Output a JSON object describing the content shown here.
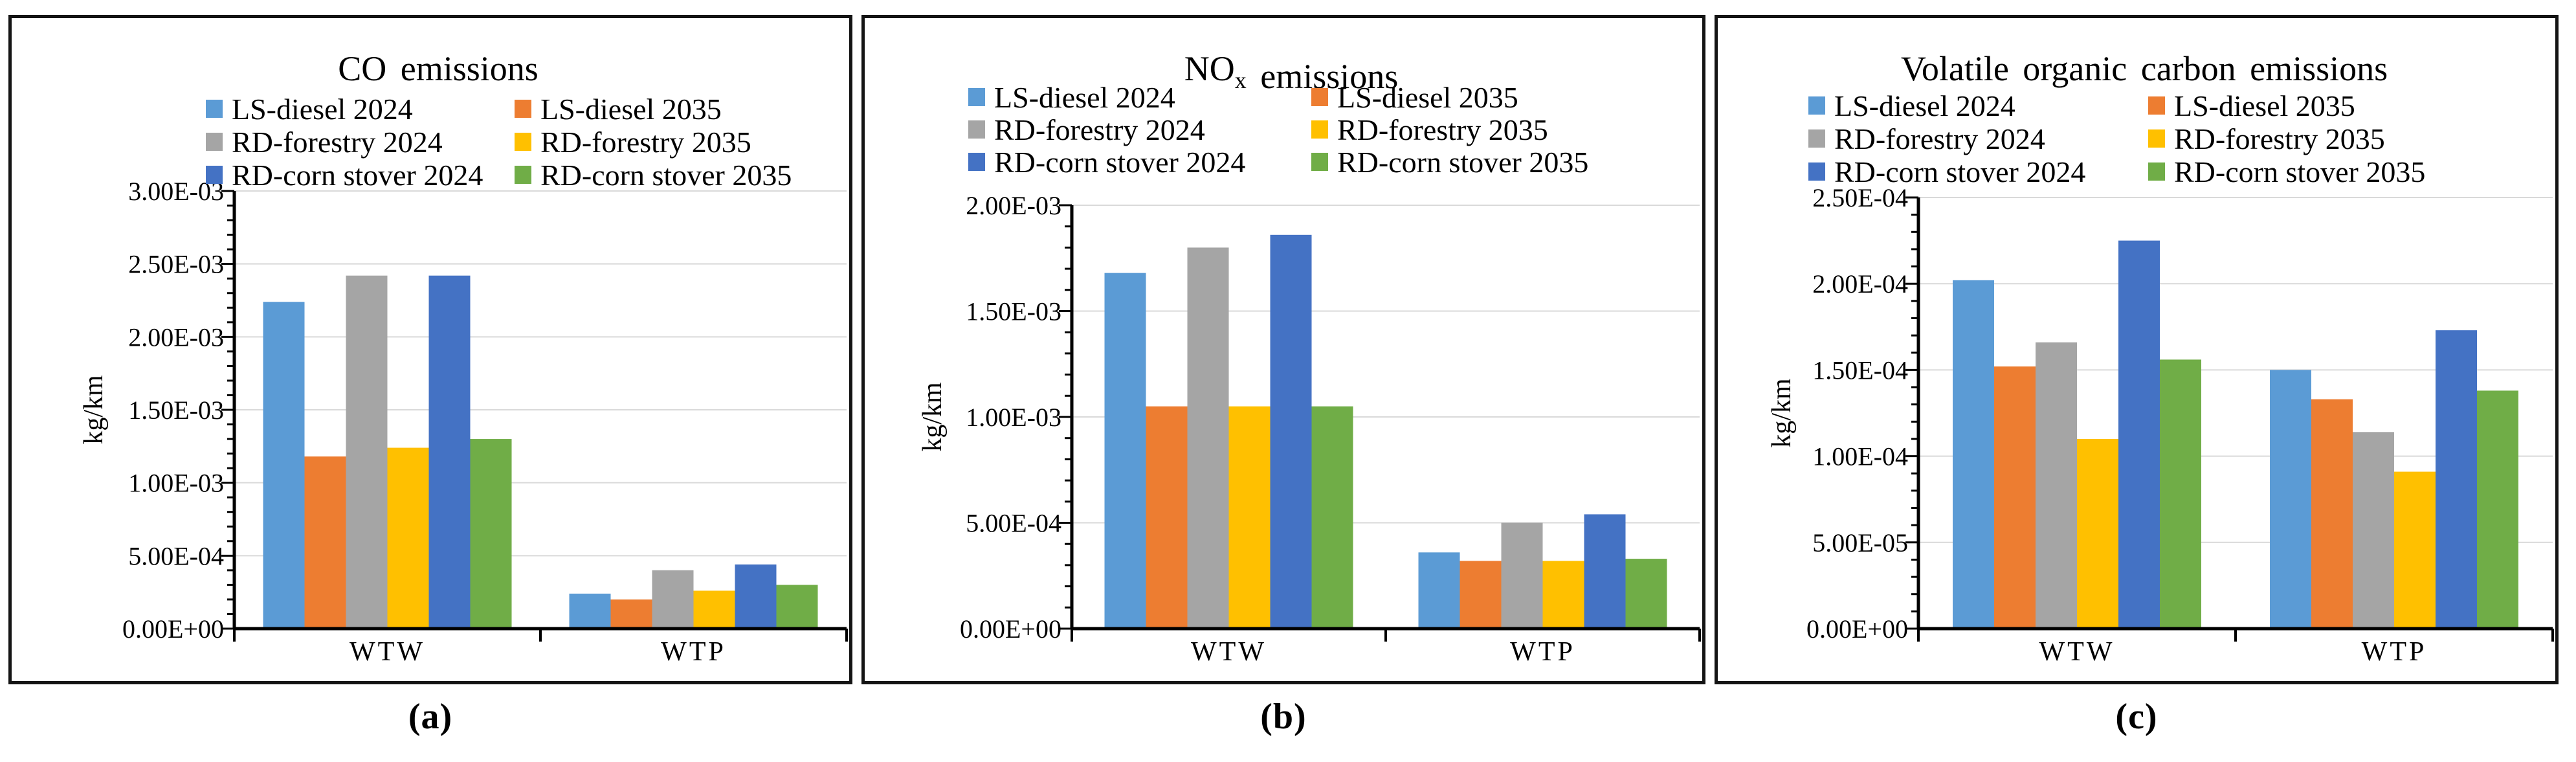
{
  "figure": {
    "captions": [
      "(a)",
      "(b)",
      "(c)"
    ],
    "unit_label": "kg/km",
    "categories": [
      "WTW",
      "WTP"
    ],
    "palette": {
      "ls_diesel_2024": "#5B9BD5",
      "ls_diesel_2035": "#ED7D31",
      "rd_forestry_2024": "#A5A5A5",
      "rd_forestry_2035": "#FFC000",
      "rd_corn_stover_2024": "#4472C4",
      "rd_corn_stover_2035": "#70AD47",
      "gridline": "#D9D9D9",
      "axis": "#000000"
    }
  },
  "chart_data": [
    {
      "type": "bar",
      "title": "CO emissions",
      "title_parts": [
        {
          "text": "CO emissions",
          "sub": false
        }
      ],
      "ylabel": "kg/km",
      "categories": [
        "WTW",
        "WTP"
      ],
      "ylim": [
        0,
        0.003
      ],
      "ytick_step": 0.0005,
      "ytick_labels": [
        "0.00E+00",
        "5.00E-04",
        "1.00E-03",
        "1.50E-03",
        "2.00E-03",
        "2.50E-03",
        "3.00E-03"
      ],
      "grid": true,
      "legend_position": "top",
      "series": [
        {
          "name": "LS-diesel 2024",
          "color": "#5B9BD5",
          "values": [
            0.00224,
            0.00024
          ]
        },
        {
          "name": "LS-diesel 2035",
          "color": "#ED7D31",
          "values": [
            0.00118,
            0.0002
          ]
        },
        {
          "name": "RD-forestry 2024",
          "color": "#A5A5A5",
          "values": [
            0.00242,
            0.0004
          ]
        },
        {
          "name": "RD-forestry 2035",
          "color": "#FFC000",
          "values": [
            0.00124,
            0.00026
          ]
        },
        {
          "name": "RD-corn stover 2024",
          "color": "#4472C4",
          "values": [
            0.00242,
            0.00044
          ]
        },
        {
          "name": "RD-corn stover 2035",
          "color": "#70AD47",
          "values": [
            0.0013,
            0.0003
          ]
        }
      ]
    },
    {
      "type": "bar",
      "title": "NOx emissions",
      "title_parts": [
        {
          "text": "NO",
          "sub": false
        },
        {
          "text": "x",
          "sub": true
        },
        {
          "text": " emissions",
          "sub": false
        }
      ],
      "ylabel": "kg/km",
      "categories": [
        "WTW",
        "WTP"
      ],
      "ylim": [
        0,
        0.002
      ],
      "ytick_step": 0.0005,
      "ytick_labels": [
        "0.00E+00",
        "5.00E-04",
        "1.00E-03",
        "1.50E-03",
        "2.00E-03"
      ],
      "grid": true,
      "legend_position": "top",
      "series": [
        {
          "name": "LS-diesel 2024",
          "color": "#5B9BD5",
          "values": [
            0.00168,
            0.00036
          ]
        },
        {
          "name": "LS-diesel 2035",
          "color": "#ED7D31",
          "values": [
            0.00105,
            0.00032
          ]
        },
        {
          "name": "RD-forestry 2024",
          "color": "#A5A5A5",
          "values": [
            0.0018,
            0.0005
          ]
        },
        {
          "name": "RD-forestry 2035",
          "color": "#FFC000",
          "values": [
            0.00105,
            0.00032
          ]
        },
        {
          "name": "RD-corn stover 2024",
          "color": "#4472C4",
          "values": [
            0.00186,
            0.00054
          ]
        },
        {
          "name": "RD-corn stover 2035",
          "color": "#70AD47",
          "values": [
            0.00105,
            0.00033
          ]
        }
      ]
    },
    {
      "type": "bar",
      "title": "Volatile organic carbon emissions",
      "title_parts": [
        {
          "text": "Volatile organic carbon emissions",
          "sub": false
        }
      ],
      "ylabel": "kg/km",
      "categories": [
        "WTW",
        "WTP"
      ],
      "ylim": [
        0,
        0.00025
      ],
      "ytick_step": 5e-05,
      "ytick_labels": [
        "0.00E+00",
        "5.00E-05",
        "1.00E-04",
        "1.50E-04",
        "2.00E-04",
        "2.50E-04"
      ],
      "grid": true,
      "legend_position": "top",
      "series": [
        {
          "name": "LS-diesel 2024",
          "color": "#5B9BD5",
          "values": [
            0.000202,
            0.00015
          ]
        },
        {
          "name": "LS-diesel 2035",
          "color": "#ED7D31",
          "values": [
            0.000152,
            0.000133
          ]
        },
        {
          "name": "RD-forestry 2024",
          "color": "#A5A5A5",
          "values": [
            0.000166,
            0.000114
          ]
        },
        {
          "name": "RD-forestry 2035",
          "color": "#FFC000",
          "values": [
            0.00011,
            9.1e-05
          ]
        },
        {
          "name": "RD-corn stover 2024",
          "color": "#4472C4",
          "values": [
            0.000225,
            0.000173
          ]
        },
        {
          "name": "RD-corn stover 2035",
          "color": "#70AD47",
          "values": [
            0.000156,
            0.000138
          ]
        }
      ]
    }
  ]
}
